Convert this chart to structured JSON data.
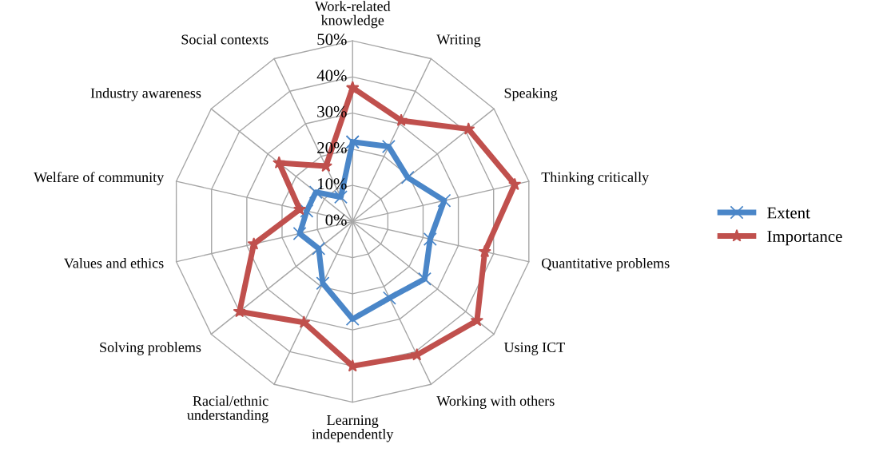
{
  "chart_data": {
    "type": "radar",
    "categories": [
      "Work-related\nknowledge",
      "Writing",
      "Speaking",
      "Thinking critically",
      "Quantitative problems",
      "Using ICT",
      "Working with others",
      "Learning\nindependently",
      "Racial/ethnic\nunderstanding",
      "Solving problems",
      "Values and ethics",
      "Welfare of community",
      "Industry awareness",
      "Social contexts"
    ],
    "series": [
      {
        "name": "Extent",
        "color": "#4a86c8",
        "marker": "cross",
        "values": [
          22,
          23,
          19.5,
          26,
          22,
          25.5,
          23.5,
          27,
          19,
          12,
          15,
          13,
          13,
          7.5
        ]
      },
      {
        "name": "Importance",
        "color": "#c0504d",
        "marker": "star",
        "values": [
          37,
          31,
          41,
          46,
          37.5,
          44,
          41,
          40,
          31,
          40,
          28,
          15,
          26,
          17
        ]
      }
    ],
    "ylim": [
      0,
      50
    ],
    "yticks": [
      {
        "value": 0,
        "label": "0%"
      },
      {
        "value": 10,
        "label": "10%"
      },
      {
        "value": 20,
        "label": "20%"
      },
      {
        "value": 30,
        "label": "30%"
      },
      {
        "value": 40,
        "label": "40%"
      },
      {
        "value": 50,
        "label": "50%"
      }
    ],
    "grid": true,
    "legend": "right",
    "line_style": "solid"
  }
}
